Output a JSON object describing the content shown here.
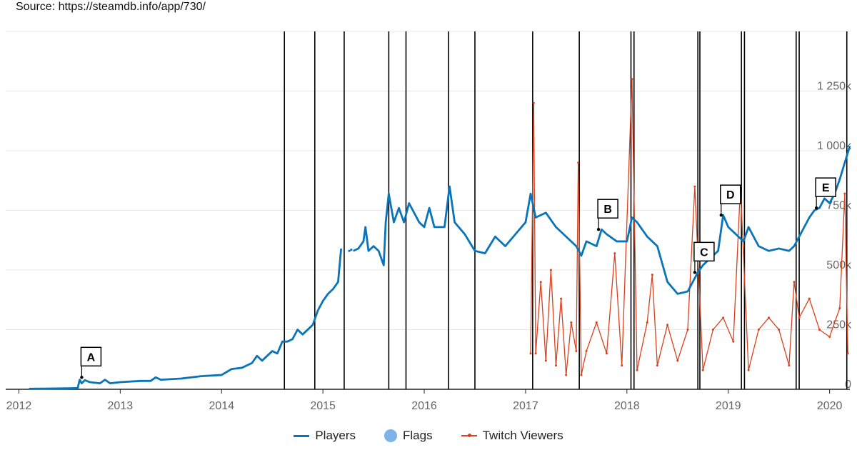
{
  "chart_data": {
    "type": "line",
    "source": "Source: https://steamdb.info/app/730/",
    "title": "",
    "xlabel": "",
    "ylabel": "",
    "xlim": [
      2011.87,
      2020.2
    ],
    "ylim": [
      0,
      1500000
    ],
    "x_ticks": [
      "2012",
      "2013",
      "2014",
      "2015",
      "2016",
      "2017",
      "2018",
      "2019",
      "2020"
    ],
    "y_ticks": [
      {
        "value": 0,
        "label": "0"
      },
      {
        "value": 250000,
        "label": "250k"
      },
      {
        "value": 500000,
        "label": "500k"
      },
      {
        "value": 750000,
        "label": "750k"
      },
      {
        "value": 1000000,
        "label": "1 000k"
      },
      {
        "value": 1250000,
        "label": "1 250k"
      }
    ],
    "grid": true,
    "legend": {
      "placement": "bottom-center",
      "flags_label": "Flags"
    },
    "series": [
      {
        "name": "Players",
        "color": "#0a74b9",
        "segments": [
          [
            [
              2012.1,
              2000
            ],
            [
              2012.3,
              3000
            ],
            [
              2012.5,
              4000
            ],
            [
              2012.58,
              5000
            ],
            [
              2012.6,
              40000
            ],
            [
              2012.62,
              25000
            ],
            [
              2012.65,
              38000
            ],
            [
              2012.7,
              30000
            ],
            [
              2012.8,
              25000
            ],
            [
              2012.85,
              40000
            ],
            [
              2012.9,
              25000
            ],
            [
              2013.0,
              30000
            ],
            [
              2013.2,
              35000
            ],
            [
              2013.3,
              35000
            ],
            [
              2013.35,
              50000
            ],
            [
              2013.4,
              40000
            ],
            [
              2013.6,
              45000
            ],
            [
              2013.8,
              55000
            ],
            [
              2014.0,
              60000
            ],
            [
              2014.1,
              85000
            ],
            [
              2014.2,
              90000
            ],
            [
              2014.3,
              110000
            ],
            [
              2014.35,
              140000
            ],
            [
              2014.4,
              120000
            ],
            [
              2014.5,
              160000
            ],
            [
              2014.55,
              150000
            ],
            [
              2014.6,
              200000
            ],
            [
              2014.65,
              200000
            ],
            [
              2014.7,
              210000
            ],
            [
              2014.75,
              250000
            ],
            [
              2014.8,
              230000
            ],
            [
              2014.9,
              270000
            ],
            [
              2014.95,
              330000
            ],
            [
              2015.0,
              370000
            ],
            [
              2015.05,
              400000
            ],
            [
              2015.1,
              420000
            ],
            [
              2015.15,
              450000
            ],
            [
              2015.18,
              590000
            ]
          ],
          [
            [
              2015.3,
              580000
            ],
            [
              2015.35,
              590000
            ],
            [
              2015.4,
              620000
            ],
            [
              2015.42,
              680000
            ],
            [
              2015.45,
              580000
            ],
            [
              2015.5,
              600000
            ],
            [
              2015.55,
              580000
            ],
            [
              2015.6,
              520000
            ],
            [
              2015.62,
              700000
            ],
            [
              2015.65,
              820000
            ],
            [
              2015.7,
              700000
            ],
            [
              2015.75,
              760000
            ],
            [
              2015.8,
              700000
            ],
            [
              2015.85,
              780000
            ],
            [
              2015.9,
              740000
            ],
            [
              2015.95,
              700000
            ],
            [
              2016.0,
              680000
            ],
            [
              2016.05,
              760000
            ],
            [
              2016.1,
              680000
            ],
            [
              2016.2,
              680000
            ],
            [
              2016.25,
              850000
            ],
            [
              2016.3,
              700000
            ],
            [
              2016.4,
              650000
            ],
            [
              2016.5,
              580000
            ],
            [
              2016.6,
              570000
            ],
            [
              2016.7,
              640000
            ],
            [
              2016.8,
              600000
            ],
            [
              2016.9,
              650000
            ],
            [
              2017.0,
              700000
            ],
            [
              2017.05,
              820000
            ],
            [
              2017.1,
              720000
            ],
            [
              2017.2,
              740000
            ],
            [
              2017.3,
              680000
            ],
            [
              2017.4,
              640000
            ],
            [
              2017.5,
              600000
            ],
            [
              2017.55,
              560000
            ],
            [
              2017.6,
              620000
            ],
            [
              2017.7,
              600000
            ],
            [
              2017.75,
              670000
            ],
            [
              2017.8,
              650000
            ],
            [
              2017.9,
              620000
            ],
            [
              2018.0,
              620000
            ],
            [
              2018.05,
              720000
            ],
            [
              2018.1,
              700000
            ],
            [
              2018.2,
              640000
            ],
            [
              2018.3,
              600000
            ],
            [
              2018.4,
              450000
            ],
            [
              2018.5,
              400000
            ],
            [
              2018.6,
              410000
            ],
            [
              2018.65,
              450000
            ],
            [
              2018.7,
              490000
            ],
            [
              2018.75,
              520000
            ],
            [
              2018.8,
              540000
            ],
            [
              2018.9,
              580000
            ],
            [
              2018.95,
              730000
            ],
            [
              2019.0,
              680000
            ],
            [
              2019.1,
              640000
            ],
            [
              2019.15,
              620000
            ],
            [
              2019.2,
              680000
            ],
            [
              2019.3,
              600000
            ],
            [
              2019.4,
              580000
            ],
            [
              2019.5,
              590000
            ],
            [
              2019.6,
              580000
            ],
            [
              2019.65,
              600000
            ],
            [
              2019.7,
              640000
            ],
            [
              2019.75,
              680000
            ],
            [
              2019.8,
              720000
            ],
            [
              2019.85,
              750000
            ],
            [
              2019.9,
              760000
            ],
            [
              2019.95,
              800000
            ],
            [
              2020.0,
              780000
            ],
            [
              2020.05,
              820000
            ],
            [
              2020.1,
              880000
            ],
            [
              2020.15,
              950000
            ],
            [
              2020.2,
              1020000
            ]
          ]
        ]
      },
      {
        "name": "Twitch Viewers",
        "color": "#d9401c",
        "points": [
          [
            2017.05,
            150000
          ],
          [
            2017.08,
            1200000
          ],
          [
            2017.1,
            150000
          ],
          [
            2017.15,
            450000
          ],
          [
            2017.2,
            120000
          ],
          [
            2017.25,
            500000
          ],
          [
            2017.3,
            100000
          ],
          [
            2017.35,
            380000
          ],
          [
            2017.4,
            60000
          ],
          [
            2017.45,
            280000
          ],
          [
            2017.5,
            160000
          ],
          [
            2017.52,
            950000
          ],
          [
            2017.55,
            60000
          ],
          [
            2017.6,
            160000
          ],
          [
            2017.7,
            280000
          ],
          [
            2017.8,
            150000
          ],
          [
            2017.88,
            570000
          ],
          [
            2017.95,
            100000
          ],
          [
            2018.05,
            1300000
          ],
          [
            2018.1,
            80000
          ],
          [
            2018.2,
            280000
          ],
          [
            2018.25,
            480000
          ],
          [
            2018.3,
            100000
          ],
          [
            2018.4,
            270000
          ],
          [
            2018.5,
            120000
          ],
          [
            2018.6,
            250000
          ],
          [
            2018.67,
            850000
          ],
          [
            2018.75,
            80000
          ],
          [
            2018.85,
            250000
          ],
          [
            2018.95,
            300000
          ],
          [
            2019.05,
            200000
          ],
          [
            2019.12,
            850000
          ],
          [
            2019.2,
            80000
          ],
          [
            2019.3,
            250000
          ],
          [
            2019.4,
            300000
          ],
          [
            2019.5,
            250000
          ],
          [
            2019.6,
            100000
          ],
          [
            2019.65,
            450000
          ],
          [
            2019.7,
            300000
          ],
          [
            2019.8,
            380000
          ],
          [
            2019.9,
            250000
          ],
          [
            2020.0,
            220000
          ],
          [
            2020.1,
            340000
          ],
          [
            2020.15,
            820000
          ],
          [
            2020.18,
            150000
          ]
        ]
      }
    ],
    "flags": [
      2014.62,
      2014.92,
      2015.21,
      2015.65,
      2015.82,
      2016.24,
      2016.5,
      2017.07,
      2017.53,
      2018.04,
      2018.07,
      2018.7,
      2018.72,
      2019.13,
      2019.16,
      2019.67,
      2019.7,
      2020.17
    ],
    "annotations": [
      {
        "label": "A",
        "x": 2012.62,
        "y": 50000
      },
      {
        "label": "B",
        "x": 2017.72,
        "y": 670000
      },
      {
        "label": "C",
        "x": 2018.67,
        "y": 490000
      },
      {
        "label": "D",
        "x": 2018.93,
        "y": 730000
      },
      {
        "label": "E",
        "x": 2019.87,
        "y": 760000
      }
    ]
  }
}
